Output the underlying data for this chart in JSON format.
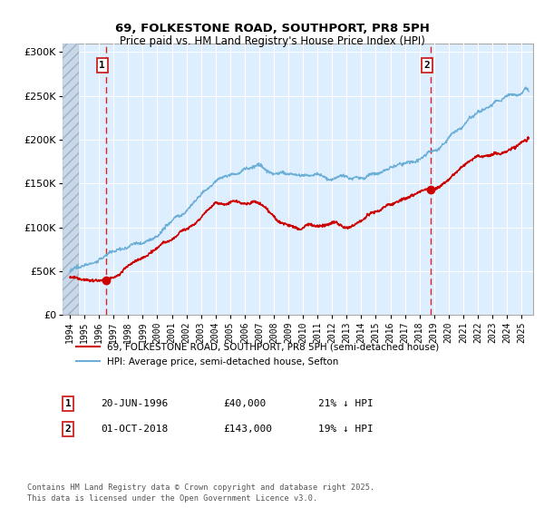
{
  "title": "69, FOLKESTONE ROAD, SOUTHPORT, PR8 5PH",
  "subtitle": "Price paid vs. HM Land Registry's House Price Index (HPI)",
  "sale1_date": "20-JUN-1996",
  "sale1_price": 40000,
  "sale1_label": "21% ↓ HPI",
  "sale2_date": "01-OCT-2018",
  "sale2_price": 143000,
  "sale2_label": "19% ↓ HPI",
  "legend_line1": "69, FOLKESTONE ROAD, SOUTHPORT, PR8 5PH (semi-detached house)",
  "legend_line2": "HPI: Average price, semi-detached house, Sefton",
  "footer": "Contains HM Land Registry data © Crown copyright and database right 2025.\nThis data is licensed under the Open Government Licence v3.0.",
  "red_color": "#cc0000",
  "blue_color": "#6baed6",
  "bg_color": "#ddeeff",
  "hatch_color": "#c0cfe0",
  "dashed_red": "#dd0000",
  "ylim": [
    0,
    310000
  ],
  "yticks": [
    0,
    50000,
    100000,
    150000,
    200000,
    250000,
    300000
  ],
  "sale1_year": 1996.47,
  "sale2_year": 2018.75,
  "xlim_left": 1993.5,
  "xlim_right": 2025.8
}
